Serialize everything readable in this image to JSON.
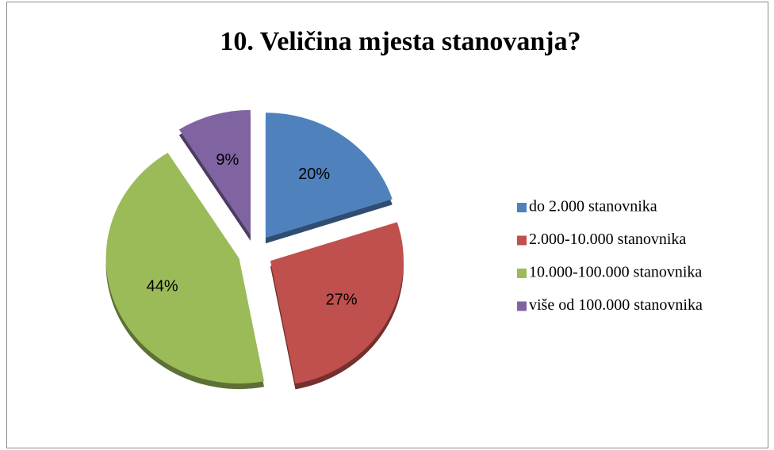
{
  "chart_data": {
    "type": "pie",
    "title": "10. Veličina mjesta stanovanja?",
    "categories": [
      "do 2.000 stanovnika",
      "2.000-10.000 stanovnika",
      "10.000-100.000 stanovnika",
      "više od 100.000 stanovnika"
    ],
    "values": [
      20,
      27,
      44,
      9
    ],
    "value_labels": [
      "20%",
      "27%",
      "44%",
      "9%"
    ],
    "colors": [
      "#4f81bd",
      "#c0504d",
      "#9bbb59",
      "#8064a2"
    ],
    "legend": "right"
  }
}
